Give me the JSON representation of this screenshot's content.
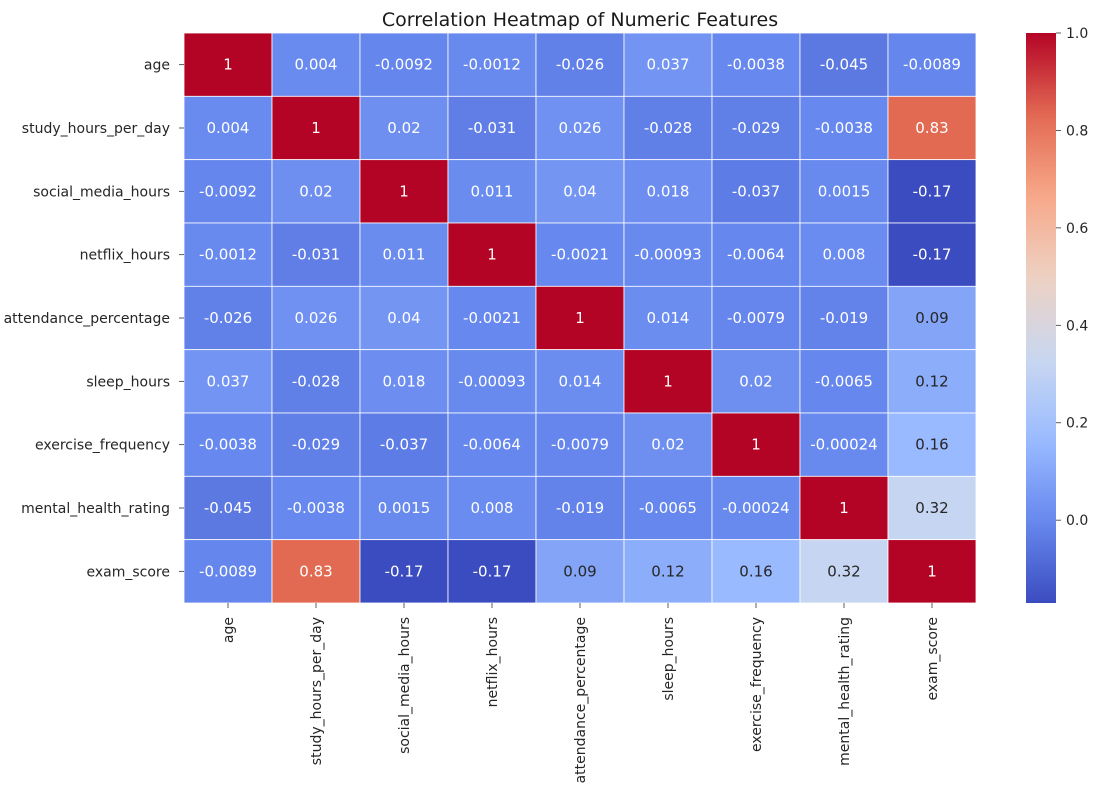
{
  "chart_data": {
    "type": "heatmap",
    "title": "Correlation Heatmap of Numeric Features",
    "xlabel": "",
    "ylabel": "",
    "colormap": "coolwarm",
    "colormap_stops": [
      "#3b4cc0",
      "#6788ee",
      "#9abbff",
      "#c9d7f0",
      "#edd1c2",
      "#f7a889",
      "#e26952",
      "#b40426"
    ],
    "vmin": -0.17,
    "vmax": 1.0,
    "annotate": true,
    "grid": true,
    "rows": [
      "age",
      "study_hours_per_day",
      "social_media_hours",
      "netflix_hours",
      "attendance_percentage",
      "sleep_hours",
      "exercise_frequency",
      "mental_health_rating",
      "exam_score"
    ],
    "columns": [
      "age",
      "study_hours_per_day",
      "social_media_hours",
      "netflix_hours",
      "attendance_percentage",
      "sleep_hours",
      "exercise_frequency",
      "mental_health_rating",
      "exam_score"
    ],
    "values": [
      [
        1,
        0.004,
        -0.0092,
        -0.0012,
        -0.026,
        0.037,
        -0.0038,
        -0.045,
        -0.0089
      ],
      [
        0.004,
        1,
        0.02,
        -0.031,
        0.026,
        -0.028,
        -0.029,
        -0.0038,
        0.83
      ],
      [
        -0.0092,
        0.02,
        1,
        0.011,
        0.04,
        0.018,
        -0.037,
        0.0015,
        -0.17
      ],
      [
        -0.0012,
        -0.031,
        0.011,
        1,
        -0.0021,
        -0.00093,
        -0.0064,
        0.008,
        -0.17
      ],
      [
        -0.026,
        0.026,
        0.04,
        -0.0021,
        1,
        0.014,
        -0.0079,
        -0.019,
        0.09
      ],
      [
        0.037,
        -0.028,
        0.018,
        -0.00093,
        0.014,
        1,
        0.02,
        -0.0065,
        0.12
      ],
      [
        -0.0038,
        -0.029,
        -0.037,
        -0.0064,
        -0.0079,
        0.02,
        1,
        -0.00024,
        0.16
      ],
      [
        -0.045,
        -0.0038,
        0.0015,
        0.008,
        -0.019,
        -0.0065,
        -0.00024,
        1,
        0.32
      ],
      [
        -0.0089,
        0.83,
        -0.17,
        -0.17,
        0.09,
        0.12,
        0.16,
        0.32,
        1
      ]
    ],
    "colorbar": {
      "ticks": [
        0.0,
        0.2,
        0.4,
        0.6,
        0.8,
        1.0
      ],
      "tick_labels": [
        "0.0",
        "0.2",
        "0.4",
        "0.6",
        "0.8",
        "1.0"
      ]
    }
  }
}
